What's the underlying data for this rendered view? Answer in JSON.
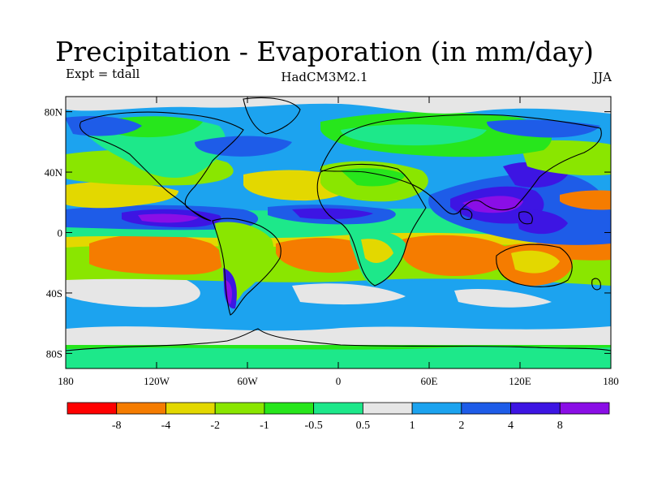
{
  "title": "Precipitation - Evaporation (in mm/day)",
  "subtitle_left": "Expt = tdall",
  "subtitle_center": "HadCM3M2.1",
  "subtitle_right": "JJA",
  "map": {
    "units": "mm/day",
    "lat_ticks": [
      "80N",
      "40N",
      "0",
      "40S",
      "80S"
    ],
    "lat_values": [
      80,
      40,
      0,
      -40,
      -80
    ],
    "lon_ticks": [
      "180",
      "120W",
      "60W",
      "0",
      "60E",
      "120E",
      "180"
    ],
    "lon_values": [
      -180,
      -120,
      -60,
      0,
      60,
      120,
      180
    ],
    "lat_range": [
      -90,
      90
    ],
    "lon_range": [
      -180,
      180
    ]
  },
  "colorbar": {
    "colors": [
      "#ff0000",
      "#f57c00",
      "#e3d800",
      "#8ae600",
      "#27e61c",
      "#1de88a",
      "#e6e6e6",
      "#1ca3ef",
      "#1e5ce8",
      "#3d15e3",
      "#8a0ee6"
    ],
    "labels": [
      "-8",
      "-4",
      "-2",
      "-1",
      "-0.5",
      "0.5",
      "1",
      "2",
      "4",
      "8"
    ]
  }
}
